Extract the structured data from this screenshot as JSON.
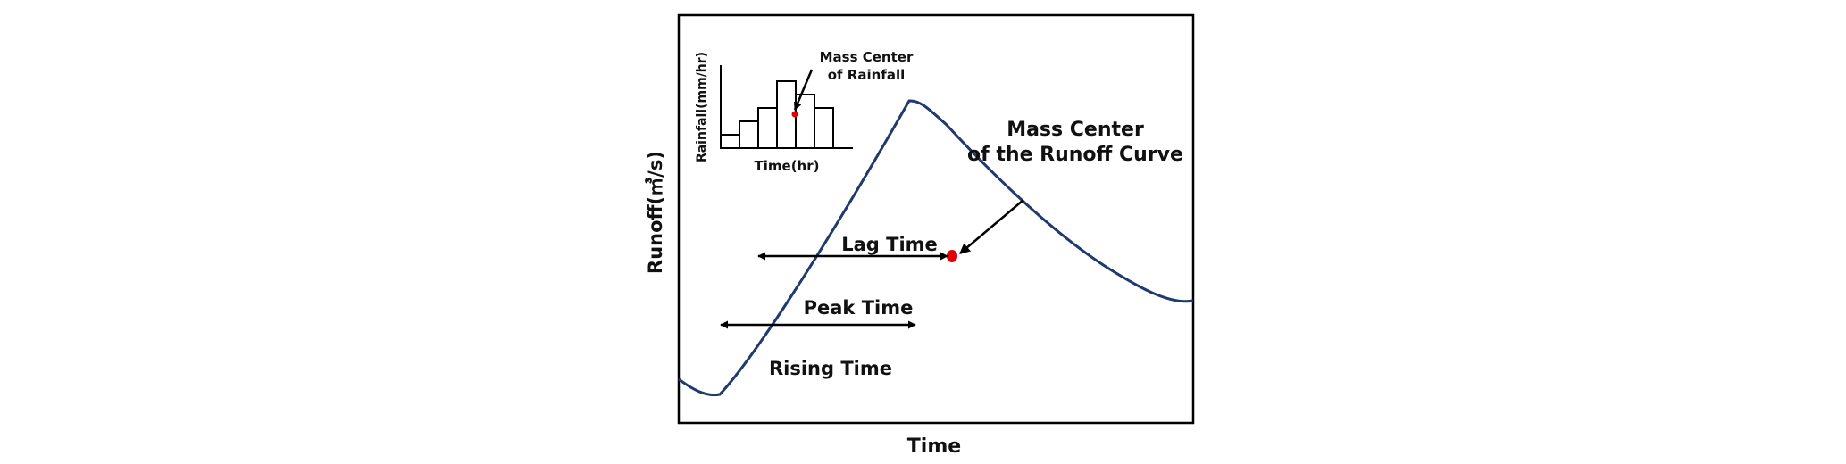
{
  "labels": {
    "x_axis": "Time",
    "y_axis": "Runoff(㎥/s)",
    "mass_center_runoff_line1": "Mass Center",
    "mass_center_runoff_line2": "of the Runoff Curve",
    "lag_time": "Lag Time",
    "peak_time": "Peak Time",
    "rising_time": "Rising Time"
  },
  "inset": {
    "y_axis": "Rainfall(mm/hr)",
    "x_axis": "Time(hr)",
    "mass_center_line1": "Mass Center",
    "mass_center_line2": "of Rainfall",
    "bar_values": [
      1,
      2,
      3,
      5,
      4,
      3
    ]
  },
  "colors": {
    "curve": "#1f3a6e",
    "mass_center_point": "#e00000",
    "frame": "#000000",
    "text": "#111111"
  }
}
